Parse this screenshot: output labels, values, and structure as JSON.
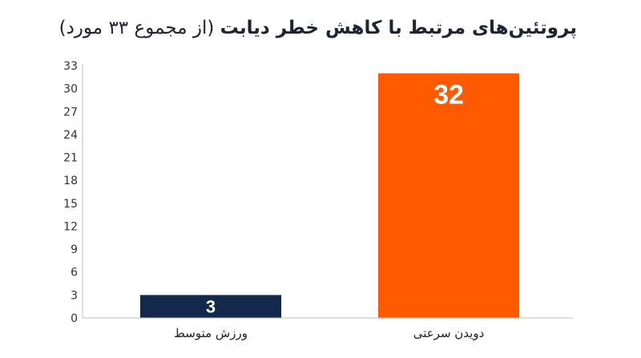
{
  "chart_data": {
    "type": "bar",
    "title": "پروتئین‌های مرتبط با کاهش خطر دیابت",
    "subtitle": "(از مجموع ۳۳ مورد)",
    "xlabel": "",
    "ylabel": "",
    "categories": [
      "ورزش متوسط",
      "دویدن سرعتی"
    ],
    "values": [
      3,
      32
    ],
    "data_labels": [
      "3",
      "32"
    ],
    "colors": [
      "#13294b",
      "#ff5a00"
    ],
    "ylim": [
      0,
      33
    ],
    "yticks": [
      0,
      3,
      6,
      9,
      12,
      15,
      18,
      21,
      24,
      27,
      30,
      33
    ],
    "grid": false,
    "legend": "none"
  }
}
